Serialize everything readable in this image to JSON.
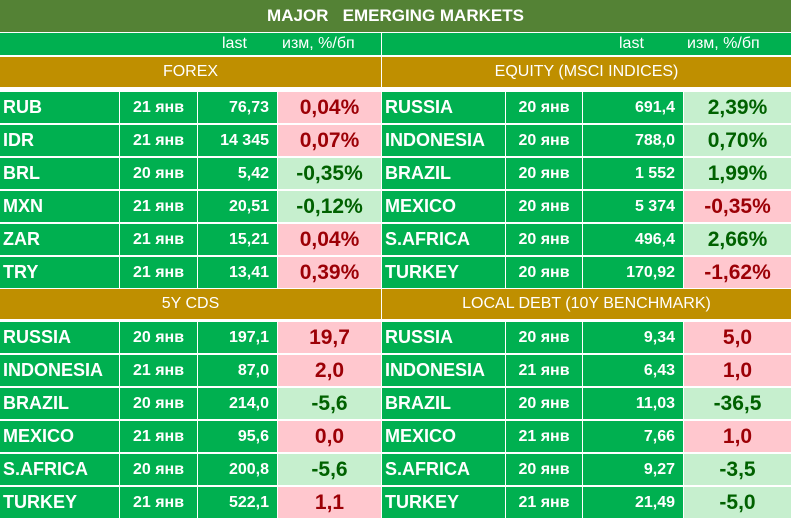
{
  "title": "MAJOR   EMERGING MARKETS",
  "header": {
    "last": "last",
    "change": "изм, %/бп"
  },
  "colors": {
    "title_bg": "#548235",
    "cell_bg": "#00b050",
    "section_bg": "#bf8f00",
    "pos_bg": "#c6efce",
    "pos_text": "#006100",
    "neg_bg": "#ffc7ce",
    "neg_text": "#9c0006"
  },
  "panels": [
    {
      "key": "forex",
      "title": "FOREX",
      "rows": [
        {
          "name": "RUB",
          "date": "21 янв",
          "last": "76,73",
          "change": "0,04%",
          "tone": "neg"
        },
        {
          "name": "IDR",
          "date": "21 янв",
          "last": "14 345",
          "change": "0,07%",
          "tone": "neg"
        },
        {
          "name": "BRL",
          "date": "20 янв",
          "last": "5,42",
          "change": "-0,35%",
          "tone": "pos"
        },
        {
          "name": "MXN",
          "date": "21 янв",
          "last": "20,51",
          "change": "-0,12%",
          "tone": "pos"
        },
        {
          "name": "ZAR",
          "date": "21 янв",
          "last": "15,21",
          "change": "0,04%",
          "tone": "neg"
        },
        {
          "name": "TRY",
          "date": "21 янв",
          "last": "13,41",
          "change": "0,39%",
          "tone": "neg"
        }
      ]
    },
    {
      "key": "equity",
      "title": "EQUITY (MSCI INDICES)",
      "rows": [
        {
          "name": "RUSSIA",
          "date": "20 янв",
          "last": "691,4",
          "change": "2,39%",
          "tone": "pos"
        },
        {
          "name": "INDONESIA",
          "date": "20 янв",
          "last": "788,0",
          "change": "0,70%",
          "tone": "pos"
        },
        {
          "name": "BRAZIL",
          "date": "20 янв",
          "last": "1 552",
          "change": "1,99%",
          "tone": "pos"
        },
        {
          "name": "MEXICO",
          "date": "20 янв",
          "last": "5 374",
          "change": "-0,35%",
          "tone": "neg"
        },
        {
          "name": "S.AFRICA",
          "date": "20 янв",
          "last": "496,4",
          "change": "2,66%",
          "tone": "pos"
        },
        {
          "name": "TURKEY",
          "date": "20 янв",
          "last": "170,92",
          "change": "-1,62%",
          "tone": "neg"
        }
      ]
    },
    {
      "key": "cds",
      "title": "5Y CDS",
      "rows": [
        {
          "name": "RUSSIA",
          "date": "20 янв",
          "last": "197,1",
          "change": "19,7",
          "tone": "neg"
        },
        {
          "name": "INDONESIA",
          "date": "21 янв",
          "last": "87,0",
          "change": "2,0",
          "tone": "neg"
        },
        {
          "name": "BRAZIL",
          "date": "20 янв",
          "last": "214,0",
          "change": "-5,6",
          "tone": "pos"
        },
        {
          "name": "MEXICO",
          "date": "21 янв",
          "last": "95,6",
          "change": "0,0",
          "tone": "neg"
        },
        {
          "name": "S.AFRICA",
          "date": "20 янв",
          "last": "200,8",
          "change": "-5,6",
          "tone": "pos"
        },
        {
          "name": "TURKEY",
          "date": "21 янв",
          "last": "522,1",
          "change": "1,1",
          "tone": "neg"
        }
      ]
    },
    {
      "key": "debt",
      "title": "LOCAL DEBT (10Y BENCHMARK)",
      "rows": [
        {
          "name": "RUSSIA",
          "date": "20 янв",
          "last": "9,34",
          "change": "5,0",
          "tone": "neg"
        },
        {
          "name": "INDONESIA",
          "date": "21 янв",
          "last": "6,43",
          "change": "1,0",
          "tone": "neg"
        },
        {
          "name": "BRAZIL",
          "date": "20 янв",
          "last": "11,03",
          "change": "-36,5",
          "tone": "pos"
        },
        {
          "name": "MEXICO",
          "date": "21 янв",
          "last": "7,66",
          "change": "1,0",
          "tone": "neg"
        },
        {
          "name": "S.AFRICA",
          "date": "20 янв",
          "last": "9,27",
          "change": "-3,5",
          "tone": "pos"
        },
        {
          "name": "TURKEY",
          "date": "21 янв",
          "last": "21,49",
          "change": "-5,0",
          "tone": "pos"
        }
      ]
    }
  ]
}
